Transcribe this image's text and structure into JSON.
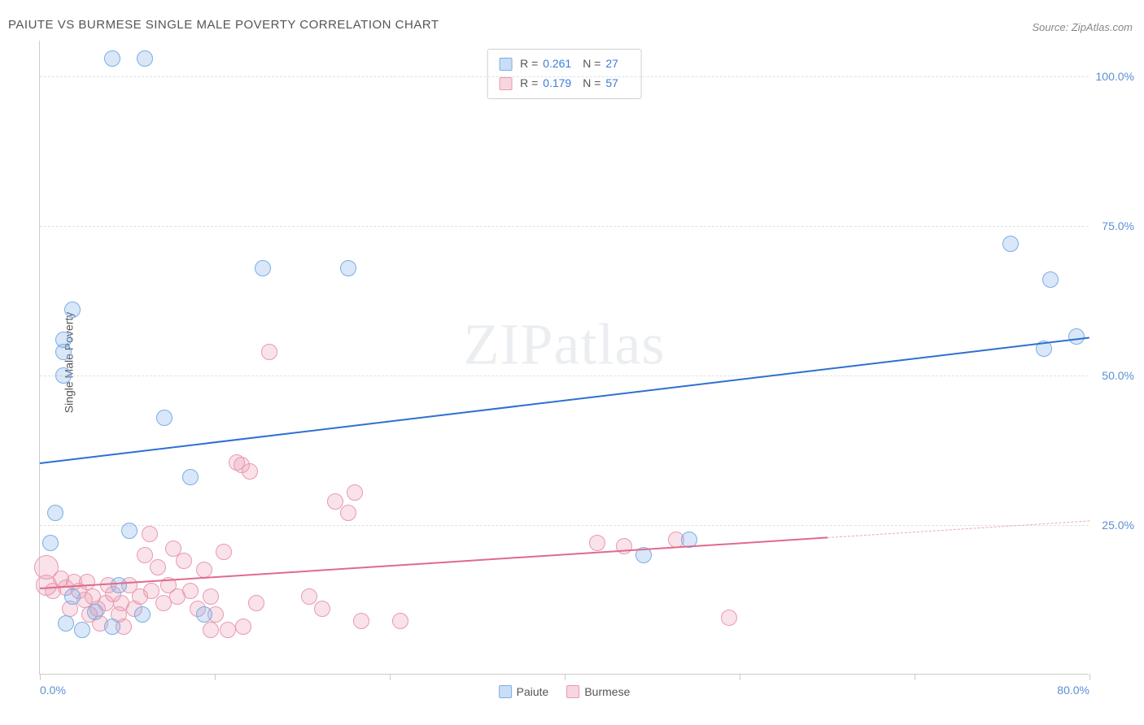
{
  "title": "PAIUTE VS BURMESE SINGLE MALE POVERTY CORRELATION CHART",
  "source": "Source: ZipAtlas.com",
  "ylabel": "Single Male Poverty",
  "watermark": {
    "zip": "ZIP",
    "atlas": "atlas"
  },
  "chart": {
    "type": "scatter",
    "xlim": [
      0,
      80
    ],
    "ylim": [
      0,
      106
    ],
    "y_ticks": [
      25,
      50,
      75,
      100
    ],
    "y_tick_labels": [
      "25.0%",
      "50.0%",
      "75.0%",
      "100.0%"
    ],
    "x_ticks": [
      0,
      13.33,
      26.67,
      40,
      53.33,
      66.67,
      80
    ],
    "x_tick_labels_shown": {
      "0": "0.0%",
      "80": "80.0%"
    },
    "grid_color": "#e0e0e0",
    "tick_label_color": "#5b8fd6",
    "background_color": "#ffffff",
    "axis_color": "#cccccc",
    "marker_radius": 10,
    "marker_radius_large": 13,
    "series": [
      {
        "name": "Paiute",
        "color_fill": "rgba(120,170,230,0.28)",
        "color_stroke": "#7aaee6",
        "swatch_fill": "#c9def5",
        "swatch_border": "#7aaee6",
        "R": "0.261",
        "N": "27",
        "points": [
          {
            "x": 5.5,
            "y": 103,
            "r": 10
          },
          {
            "x": 8.0,
            "y": 103,
            "r": 10
          },
          {
            "x": 2.5,
            "y": 61,
            "r": 10
          },
          {
            "x": 1.8,
            "y": 56,
            "r": 10
          },
          {
            "x": 1.8,
            "y": 54,
            "r": 10
          },
          {
            "x": 1.8,
            "y": 50,
            "r": 10
          },
          {
            "x": 9.5,
            "y": 43,
            "r": 10
          },
          {
            "x": 11.5,
            "y": 33,
            "r": 10
          },
          {
            "x": 1.2,
            "y": 27,
            "r": 10
          },
          {
            "x": 6.8,
            "y": 24,
            "r": 10
          },
          {
            "x": 7.8,
            "y": 10,
            "r": 10
          },
          {
            "x": 12.5,
            "y": 10,
            "r": 10
          },
          {
            "x": 2.5,
            "y": 13,
            "r": 10
          },
          {
            "x": 2.0,
            "y": 8.5,
            "r": 10
          },
          {
            "x": 3.2,
            "y": 7.5,
            "r": 10
          },
          {
            "x": 17,
            "y": 68,
            "r": 10
          },
          {
            "x": 23.5,
            "y": 68,
            "r": 10
          },
          {
            "x": 46,
            "y": 20,
            "r": 10
          },
          {
            "x": 49.5,
            "y": 22.5,
            "r": 10
          },
          {
            "x": 74,
            "y": 72,
            "r": 10
          },
          {
            "x": 77,
            "y": 66,
            "r": 10
          },
          {
            "x": 76.5,
            "y": 54.5,
            "r": 10
          },
          {
            "x": 79,
            "y": 56.5,
            "r": 10
          },
          {
            "x": 0.8,
            "y": 22,
            "r": 10
          },
          {
            "x": 4.2,
            "y": 10.5,
            "r": 10
          },
          {
            "x": 5.5,
            "y": 8,
            "r": 10
          },
          {
            "x": 6.0,
            "y": 15,
            "r": 10
          }
        ],
        "regression": {
          "x1": 0,
          "y1": 35.5,
          "x2": 80,
          "y2": 56.5,
          "color": "#2f6fd0",
          "width": 2
        }
      },
      {
        "name": "Burmese",
        "color_fill": "rgba(235,150,175,0.28)",
        "color_stroke": "#e99ab0",
        "swatch_fill": "#f6d6df",
        "swatch_border": "#e99ab0",
        "R": "0.179",
        "N": "57",
        "points": [
          {
            "x": 0.5,
            "y": 18,
            "r": 15
          },
          {
            "x": 0.5,
            "y": 15,
            "r": 13
          },
          {
            "x": 1.0,
            "y": 14,
            "r": 10
          },
          {
            "x": 1.6,
            "y": 16,
            "r": 10
          },
          {
            "x": 2.0,
            "y": 14.5,
            "r": 10
          },
          {
            "x": 2.3,
            "y": 11,
            "r": 10
          },
          {
            "x": 2.6,
            "y": 15.5,
            "r": 10
          },
          {
            "x": 3.0,
            "y": 14,
            "r": 10
          },
          {
            "x": 3.4,
            "y": 12.5,
            "r": 10
          },
          {
            "x": 3.6,
            "y": 15.5,
            "r": 10
          },
          {
            "x": 3.8,
            "y": 10,
            "r": 10
          },
          {
            "x": 4.0,
            "y": 13,
            "r": 10
          },
          {
            "x": 4.4,
            "y": 11,
            "r": 10
          },
          {
            "x": 4.6,
            "y": 8.5,
            "r": 10
          },
          {
            "x": 5.0,
            "y": 12,
            "r": 10
          },
          {
            "x": 5.2,
            "y": 15,
            "r": 10
          },
          {
            "x": 5.6,
            "y": 13.5,
            "r": 10
          },
          {
            "x": 6.0,
            "y": 10,
            "r": 10
          },
          {
            "x": 6.2,
            "y": 12,
            "r": 10
          },
          {
            "x": 6.4,
            "y": 8,
            "r": 10
          },
          {
            "x": 6.8,
            "y": 15,
            "r": 10
          },
          {
            "x": 7.2,
            "y": 11,
            "r": 10
          },
          {
            "x": 7.6,
            "y": 13,
            "r": 10
          },
          {
            "x": 8.0,
            "y": 20,
            "r": 10
          },
          {
            "x": 8.4,
            "y": 23.5,
            "r": 10
          },
          {
            "x": 8.5,
            "y": 14,
            "r": 10
          },
          {
            "x": 9.0,
            "y": 18,
            "r": 10
          },
          {
            "x": 9.4,
            "y": 12,
            "r": 10
          },
          {
            "x": 9.8,
            "y": 15,
            "r": 10
          },
          {
            "x": 10.2,
            "y": 21,
            "r": 10
          },
          {
            "x": 10.5,
            "y": 13,
            "r": 10
          },
          {
            "x": 11.0,
            "y": 19,
            "r": 10
          },
          {
            "x": 11.5,
            "y": 14,
            "r": 10
          },
          {
            "x": 12.0,
            "y": 11,
            "r": 10
          },
          {
            "x": 12.5,
            "y": 17.5,
            "r": 10
          },
          {
            "x": 13.0,
            "y": 13,
            "r": 10
          },
          {
            "x": 13.0,
            "y": 7.5,
            "r": 10
          },
          {
            "x": 13.4,
            "y": 10,
            "r": 10
          },
          {
            "x": 14.0,
            "y": 20.5,
            "r": 10
          },
          {
            "x": 14.3,
            "y": 7.5,
            "r": 10
          },
          {
            "x": 15.0,
            "y": 35.5,
            "r": 10
          },
          {
            "x": 15.4,
            "y": 35,
            "r": 10
          },
          {
            "x": 15.5,
            "y": 8,
            "r": 10
          },
          {
            "x": 16.0,
            "y": 34,
            "r": 10
          },
          {
            "x": 16.5,
            "y": 12,
            "r": 10
          },
          {
            "x": 17.5,
            "y": 54,
            "r": 10
          },
          {
            "x": 20.5,
            "y": 13,
            "r": 10
          },
          {
            "x": 21.5,
            "y": 11,
            "r": 10
          },
          {
            "x": 22.5,
            "y": 29,
            "r": 10
          },
          {
            "x": 23.5,
            "y": 27,
            "r": 10
          },
          {
            "x": 24.0,
            "y": 30.5,
            "r": 10
          },
          {
            "x": 24.5,
            "y": 9,
            "r": 10
          },
          {
            "x": 27.5,
            "y": 9,
            "r": 10
          },
          {
            "x": 42.5,
            "y": 22,
            "r": 10
          },
          {
            "x": 44.5,
            "y": 21.5,
            "r": 10
          },
          {
            "x": 52.5,
            "y": 9.5,
            "r": 10
          },
          {
            "x": 48.5,
            "y": 22.5,
            "r": 10
          }
        ],
        "regression": {
          "x1": 0,
          "y1": 14.5,
          "x2": 60,
          "y2": 23,
          "color": "#e06a8c",
          "width": 2
        },
        "regression_dashed": {
          "x1": 60,
          "y1": 23,
          "x2": 80,
          "y2": 25.8,
          "color": "#e9a6ba",
          "width": 1
        }
      }
    ]
  }
}
